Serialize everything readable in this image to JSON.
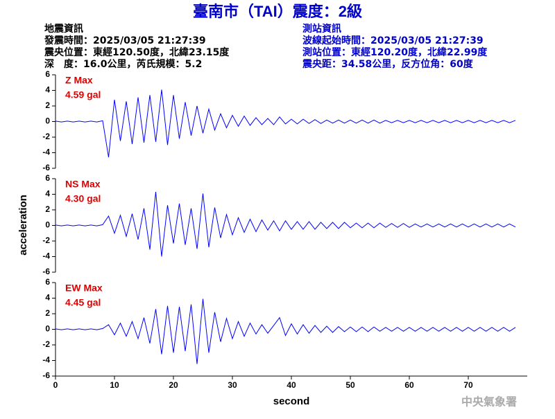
{
  "header": {
    "title": "臺南市（TAI）震度：2級",
    "left": [
      "地震資訊",
      "發震時間：2025/03/05 21:27:39",
      "震央位置：東經120.50度，北緯23.15度",
      "深　度：16.0公里，芮氏規模：5.2"
    ],
    "right": [
      "測站資訊",
      "波線起始時間：2025/03/05 21:27:39",
      "測站位置：東經120.20度，北緯22.99度",
      "震央距：34.58公里，反方位角：60度"
    ]
  },
  "ylabel": "acceleration",
  "watermark": "中央氣象署",
  "chart_data": [
    {
      "type": "line",
      "label": "Z Max",
      "max_label": "4.59 gal",
      "color": "#0000ff",
      "ylim": [
        -6,
        6
      ],
      "yticks": [
        -6,
        -4,
        -2,
        0,
        2,
        4,
        6
      ],
      "xlim": [
        0,
        80
      ],
      "x": [
        0,
        1,
        2,
        3,
        4,
        5,
        6,
        7,
        8,
        9,
        10,
        11,
        12,
        13,
        14,
        15,
        16,
        17,
        18,
        19,
        20,
        21,
        22,
        23,
        24,
        25,
        26,
        27,
        28,
        29,
        30,
        31,
        32,
        33,
        34,
        35,
        36,
        37,
        38,
        39,
        40,
        41,
        42,
        43,
        44,
        45,
        46,
        47,
        48,
        49,
        50,
        51,
        52,
        53,
        54,
        55,
        56,
        57,
        58,
        59,
        60,
        61,
        62,
        63,
        64,
        65,
        66,
        67,
        68,
        69,
        70,
        71,
        72,
        73,
        74,
        75,
        76,
        77,
        78
      ],
      "values": [
        0.05,
        -0.05,
        0.05,
        -0.05,
        0.05,
        -0.05,
        0.05,
        -0.05,
        0.1,
        -4.59,
        2.8,
        -2.5,
        2.6,
        -2.9,
        3.1,
        -2.7,
        3.4,
        -2.6,
        4.1,
        -3.0,
        3.4,
        -2.2,
        2.5,
        -1.8,
        2.0,
        -1.5,
        1.6,
        -1.1,
        1.0,
        -0.8,
        0.8,
        -0.6,
        0.7,
        -0.5,
        0.5,
        -0.4,
        0.4,
        -0.4,
        0.6,
        -0.3,
        0.3,
        -0.3,
        0.3,
        -0.25,
        0.25,
        -0.25,
        0.2,
        -0.2,
        0.2,
        -0.2,
        0.2,
        -0.2,
        0.2,
        -0.2,
        0.2,
        -0.2,
        0.15,
        -0.15,
        0.15,
        -0.15,
        0.15,
        -0.15,
        0.15,
        -0.15,
        0.15,
        -0.15,
        0.15,
        -0.15,
        0.15,
        -0.15,
        0.15,
        -0.15,
        0.15,
        -0.15,
        0.15,
        -0.15,
        0.15,
        -0.15,
        0.15
      ]
    },
    {
      "type": "line",
      "label": "NS Max",
      "max_label": "4.30 gal",
      "color": "#0000ff",
      "ylim": [
        -6,
        6
      ],
      "yticks": [
        -6,
        -4,
        -2,
        0,
        2,
        4,
        6
      ],
      "xlim": [
        0,
        80
      ],
      "x": [
        0,
        1,
        2,
        3,
        4,
        5,
        6,
        7,
        8,
        9,
        10,
        11,
        12,
        13,
        14,
        15,
        16,
        17,
        18,
        19,
        20,
        21,
        22,
        23,
        24,
        25,
        26,
        27,
        28,
        29,
        30,
        31,
        32,
        33,
        34,
        35,
        36,
        37,
        38,
        39,
        40,
        41,
        42,
        43,
        44,
        45,
        46,
        47,
        48,
        49,
        50,
        51,
        52,
        53,
        54,
        55,
        56,
        57,
        58,
        59,
        60,
        61,
        62,
        63,
        64,
        65,
        66,
        67,
        68,
        69,
        70,
        71,
        72,
        73,
        74,
        75,
        76,
        77,
        78
      ],
      "values": [
        0.05,
        -0.05,
        0.05,
        -0.05,
        0.05,
        -0.05,
        0.05,
        -0.05,
        0.1,
        1.2,
        -1.0,
        1.3,
        -1.4,
        1.5,
        -1.8,
        2.2,
        -3.1,
        4.3,
        -4.0,
        2.6,
        -2.3,
        2.8,
        -2.5,
        2.2,
        -3.0,
        4.1,
        -2.8,
        2.3,
        -1.6,
        1.4,
        -1.2,
        1.0,
        -0.9,
        0.8,
        -0.8,
        0.7,
        -0.6,
        0.6,
        -0.7,
        0.6,
        -0.5,
        0.5,
        -0.5,
        0.5,
        -0.5,
        0.4,
        -0.4,
        0.4,
        -0.4,
        0.4,
        -0.3,
        0.3,
        -0.3,
        0.3,
        -0.3,
        0.3,
        -0.25,
        0.25,
        -0.25,
        0.25,
        -0.25,
        0.2,
        -0.2,
        0.2,
        -0.2,
        0.2,
        -0.2,
        0.2,
        -0.2,
        0.2,
        -0.2,
        0.2,
        -0.2,
        0.2,
        -0.2,
        0.2,
        -0.2,
        0.2,
        -0.2
      ]
    },
    {
      "type": "line",
      "label": "EW Max",
      "max_label": "4.45 gal",
      "color": "#0000ff",
      "ylim": [
        -6,
        6
      ],
      "yticks": [
        -6,
        -4,
        -2,
        0,
        2,
        4,
        6
      ],
      "xlim": [
        0,
        80
      ],
      "xticks": [
        0,
        10,
        20,
        30,
        40,
        50,
        60,
        70
      ],
      "xlabel": "second",
      "x": [
        0,
        1,
        2,
        3,
        4,
        5,
        6,
        7,
        8,
        9,
        10,
        11,
        12,
        13,
        14,
        15,
        16,
        17,
        18,
        19,
        20,
        21,
        22,
        23,
        24,
        25,
        26,
        27,
        28,
        29,
        30,
        31,
        32,
        33,
        34,
        35,
        36,
        37,
        38,
        39,
        40,
        41,
        42,
        43,
        44,
        45,
        46,
        47,
        48,
        49,
        50,
        51,
        52,
        53,
        54,
        55,
        56,
        57,
        58,
        59,
        60,
        61,
        62,
        63,
        64,
        65,
        66,
        67,
        68,
        69,
        70,
        71,
        72,
        73,
        74,
        75,
        76,
        77,
        78
      ],
      "values": [
        0.05,
        -0.05,
        0.05,
        -0.05,
        0.05,
        -0.05,
        0.05,
        -0.05,
        0.1,
        0.6,
        -0.7,
        0.8,
        -0.9,
        1.0,
        -1.2,
        1.5,
        -1.8,
        2.6,
        -3.2,
        3.0,
        -3.0,
        2.9,
        -2.8,
        3.2,
        -4.45,
        3.9,
        -3.0,
        2.2,
        -1.6,
        1.4,
        -1.2,
        1.0,
        -0.9,
        0.8,
        -0.6,
        0.6,
        -0.5,
        0.5,
        1.5,
        -0.8,
        0.7,
        -0.6,
        0.6,
        -0.5,
        0.5,
        -0.4,
        0.4,
        -0.4,
        0.35,
        -0.3,
        0.3,
        -0.3,
        0.3,
        -0.3,
        0.3,
        -0.25,
        0.25,
        -0.25,
        0.25,
        -0.25,
        0.25,
        -0.25,
        0.25,
        -0.25,
        0.25,
        -0.25,
        0.25,
        -0.25,
        0.25,
        -0.25,
        0.25,
        -0.25,
        0.25,
        -0.25,
        0.25,
        -0.25,
        0.25,
        -0.25,
        0.25
      ]
    }
  ]
}
